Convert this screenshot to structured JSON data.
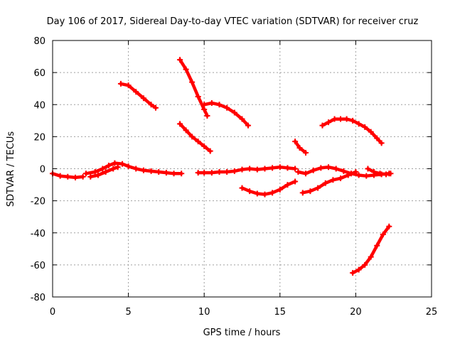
{
  "chart_data": {
    "type": "scatter",
    "title": "Day 106 of 2017, Sidereal Day-to-day VTEC variation (SDTVAR) for receiver cruz",
    "xlabel": "GPS time / hours",
    "ylabel": "SDTVAR / TECUs",
    "xlim": [
      0,
      25
    ],
    "ylim": [
      -80,
      80
    ],
    "xticks": [
      0,
      5,
      10,
      15,
      20,
      25
    ],
    "yticks": [
      -80,
      -60,
      -40,
      -20,
      0,
      20,
      40,
      60,
      80
    ],
    "x_tick_labels": [
      "0",
      "5",
      "10",
      "15",
      "20",
      "25"
    ],
    "y_tick_labels": [
      "-80",
      "-60",
      "-40",
      "-20",
      "0",
      "20",
      "40",
      "60",
      "80"
    ],
    "grid": true,
    "marker": "plus",
    "color": "#ff0000",
    "series": [
      {
        "x": [
          0.0,
          0.5,
          1.0,
          1.5,
          2.0
        ],
        "y": [
          -3,
          -4.5,
          -5,
          -5.5,
          -5
        ]
      },
      {
        "x": [
          2.2,
          2.8,
          3.3,
          3.7,
          4.1,
          4.6,
          5.0,
          5.5,
          6.0,
          6.5,
          7.0,
          7.5,
          8.0,
          8.5
        ],
        "y": [
          -3,
          -2,
          0,
          2,
          3.5,
          3,
          1.5,
          0,
          -1,
          -1.5,
          -2,
          -2.5,
          -3,
          -3
        ]
      },
      {
        "x": [
          2.5,
          3.0,
          3.5,
          4.0,
          4.3
        ],
        "y": [
          -5,
          -4,
          -2,
          0,
          1
        ]
      },
      {
        "x": [
          4.5,
          5.0,
          5.5,
          6.0,
          6.5,
          6.8
        ],
        "y": [
          53,
          52,
          48,
          44,
          40,
          38
        ]
      },
      {
        "x": [
          8.4,
          8.8,
          9.2,
          9.6,
          10.0,
          10.2
        ],
        "y": [
          68,
          62,
          54,
          45,
          37,
          33
        ]
      },
      {
        "x": [
          8.4,
          8.8,
          9.2,
          9.6,
          10.0,
          10.4
        ],
        "y": [
          28,
          24,
          20,
          17,
          14,
          11
        ]
      },
      {
        "x": [
          9.6,
          10.0,
          10.5,
          11.0,
          11.5,
          12.0,
          12.5,
          13.0,
          13.5,
          14.0,
          14.5,
          15.0,
          15.5,
          16.0
        ],
        "y": [
          -2.5,
          -2.5,
          -2.5,
          -2,
          -2,
          -1.5,
          -0.5,
          0,
          -0.5,
          0,
          0.5,
          1,
          0.5,
          0
        ]
      },
      {
        "x": [
          10.0,
          10.5,
          11.0,
          11.5,
          12.0,
          12.5,
          12.9
        ],
        "y": [
          40,
          41,
          40,
          38,
          35,
          31,
          27
        ]
      },
      {
        "x": [
          12.5,
          13.0,
          13.5,
          14.0,
          14.5,
          15.0,
          15.5,
          16.0
        ],
        "y": [
          -12,
          -14,
          -15.5,
          -16,
          -15,
          -13,
          -10,
          -8
        ]
      },
      {
        "x": [
          16.0,
          16.3,
          16.7
        ],
        "y": [
          17,
          13,
          10
        ]
      },
      {
        "x": [
          16.2,
          16.7,
          17.2,
          17.7,
          18.2,
          18.7,
          19.2,
          19.7,
          20.2,
          20.7,
          21.2,
          21.7,
          22.2
        ],
        "y": [
          -2,
          -3,
          -1,
          0.5,
          1,
          0,
          -1.5,
          -3,
          -4,
          -4.5,
          -4,
          -3.5,
          -3
        ]
      },
      {
        "x": [
          16.5,
          17.0,
          17.5,
          18.0,
          18.5,
          19.0,
          19.5,
          20.0
        ],
        "y": [
          -15,
          -14,
          -12,
          -9,
          -7,
          -6,
          -4,
          -2
        ]
      },
      {
        "x": [
          17.8,
          18.2,
          18.6,
          19.0,
          19.4,
          19.8,
          20.2,
          20.6,
          21.0,
          21.4,
          21.7
        ],
        "y": [
          27,
          29,
          31,
          31,
          31,
          30,
          28,
          26,
          23,
          19,
          16
        ]
      },
      {
        "x": [
          19.8,
          20.2,
          20.6,
          21.0,
          21.4,
          21.8,
          22.2
        ],
        "y": [
          -65,
          -63,
          -60,
          -55,
          -48,
          -41,
          -36
        ]
      },
      {
        "x": [
          20.8,
          21.2,
          21.6,
          22.0,
          22.3
        ],
        "y": [
          0,
          -2,
          -3,
          -3.5,
          -3
        ]
      }
    ]
  }
}
